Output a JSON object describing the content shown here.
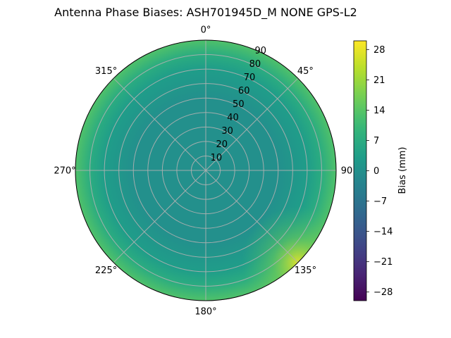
{
  "chart_data": {
    "type": "heatmap",
    "projection": "polar",
    "title": "Antenna Phase Biases: ASH701945D_M    NONE GPS-L2",
    "theta_ticks": [
      {
        "angle": 0,
        "label": "0°"
      },
      {
        "angle": 45,
        "label": "45°"
      },
      {
        "angle": 90,
        "label": "90"
      },
      {
        "angle": 135,
        "label": "135°"
      },
      {
        "angle": 180,
        "label": "180°"
      },
      {
        "angle": 225,
        "label": "225°"
      },
      {
        "angle": 270,
        "label": "270°"
      },
      {
        "angle": 315,
        "label": "315°"
      }
    ],
    "theta_direction": "clockwise",
    "theta_zero": "top",
    "r_ticks": [
      10,
      20,
      30,
      40,
      50,
      60,
      70,
      80,
      90
    ],
    "r_range": [
      0,
      90
    ],
    "grid": true,
    "colormap": "viridis",
    "colorbar": {
      "label": "Bias (mm)",
      "range": [
        -30,
        30
      ],
      "ticks": [
        {
          "value": 28,
          "label": "28"
        },
        {
          "value": 21,
          "label": "21"
        },
        {
          "value": 14,
          "label": "14"
        },
        {
          "value": 7,
          "label": "7"
        },
        {
          "value": 0,
          "label": "0"
        },
        {
          "value": -7,
          "label": "−7"
        },
        {
          "value": -14,
          "label": "−14"
        },
        {
          "value": -21,
          "label": "−21"
        },
        {
          "value": -28,
          "label": "−28"
        }
      ]
    },
    "field_samples": [
      {
        "r": 0,
        "bias": 0
      },
      {
        "r": 50,
        "bias": 0
      },
      {
        "r": 70,
        "bias": 3
      },
      {
        "r": 80,
        "bias": 7
      },
      {
        "r": 90,
        "bias": 13
      },
      {
        "r": 90,
        "azimuth": 135,
        "bias": 28
      }
    ]
  }
}
